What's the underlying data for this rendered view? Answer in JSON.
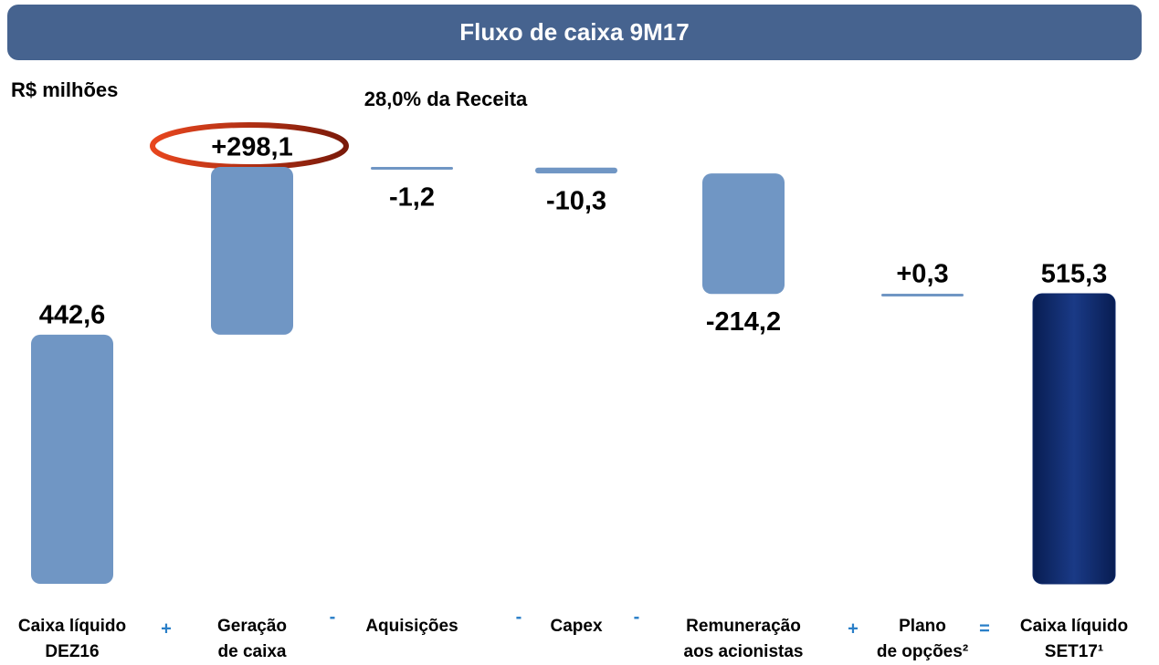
{
  "chart_data": {
    "type": "waterfall",
    "title": "Fluxo de caixa 9M17",
    "unit_label": "R$ milhões",
    "annotation": "28,0% da Receita",
    "categories": [
      [
        "Caixa líquido",
        "DEZ16"
      ],
      [
        "Geração",
        "de caixa"
      ],
      [
        "Aquisições"
      ],
      [
        "Capex"
      ],
      [
        "Remuneração",
        "aos acionistas"
      ],
      [
        "Plano",
        "de opções²"
      ],
      [
        "Caixa líquido",
        "SET17¹"
      ]
    ],
    "operators": [
      "+",
      "-",
      "-",
      "-",
      "+",
      "="
    ],
    "values": [
      442.6,
      298.1,
      -1.2,
      -10.3,
      -214.2,
      0.3,
      515.3
    ],
    "value_labels": [
      "442,6",
      "+298,1",
      "-1,2",
      "-10,3",
      "-214,2",
      "+0,3",
      "515,3"
    ],
    "color": "#7096c4",
    "total_color": "#0f2a6c",
    "operator_color": "#2a7fc8"
  }
}
